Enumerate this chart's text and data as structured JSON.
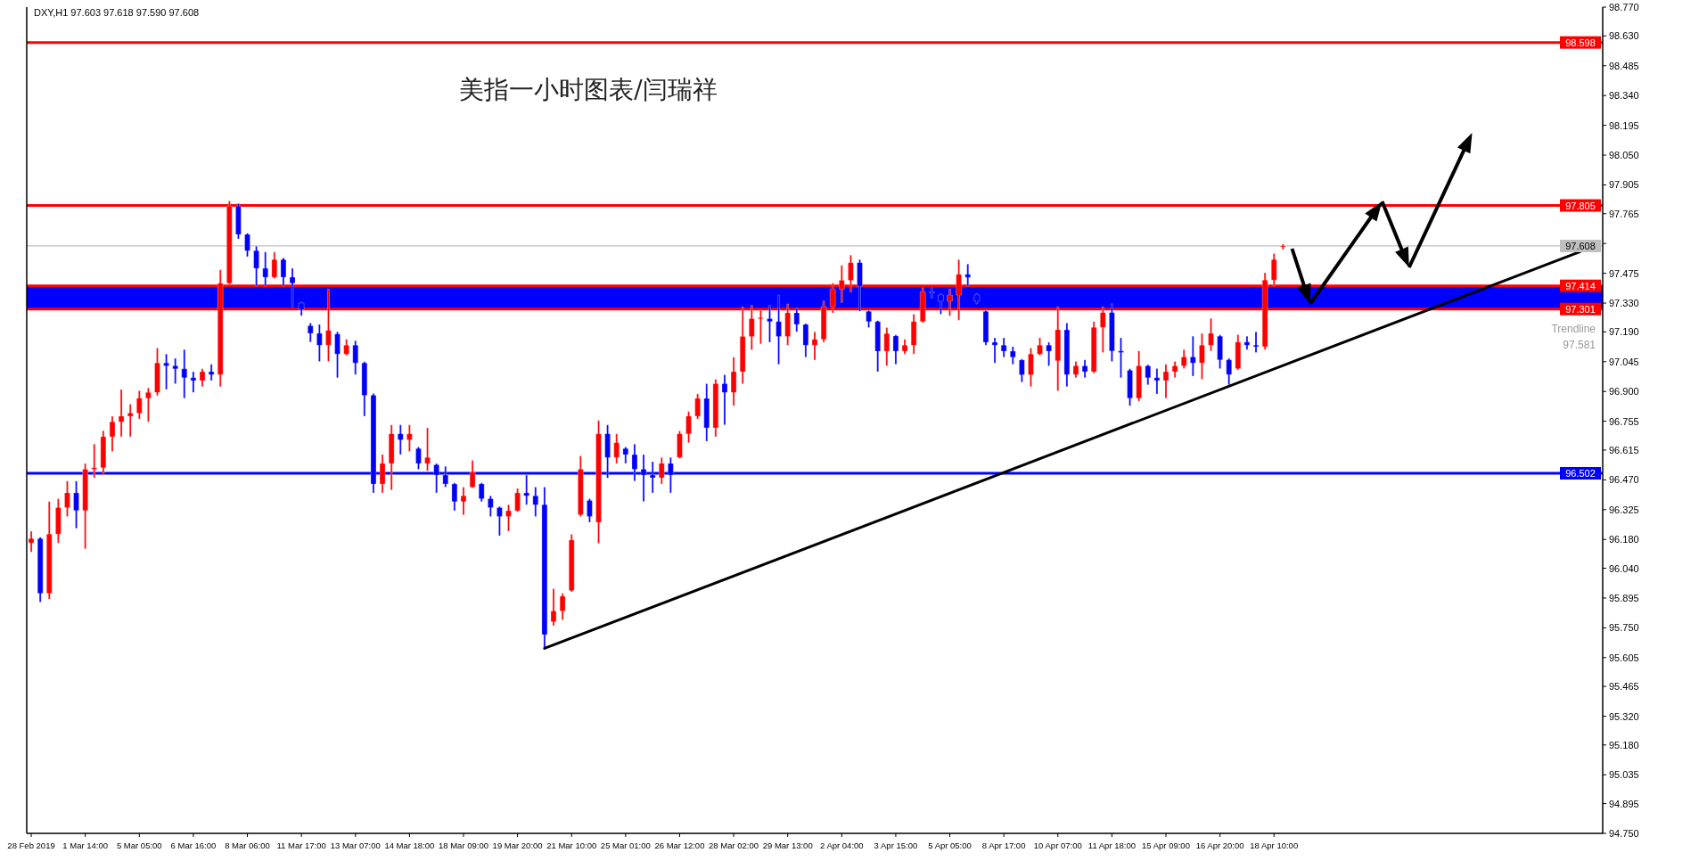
{
  "chart_data": {
    "type": "candlestick",
    "title": "美指一小时图表/闫瑞祥",
    "subtitle": "DXY,H1  97.603 97.618 97.590 97.608",
    "categories": [
      "28 Feb 2019",
      null,
      null,
      null,
      null,
      null,
      "1 Mar 14:00",
      null,
      null,
      null,
      null,
      null,
      "5 Mar 05:00",
      null,
      null,
      null,
      null,
      null,
      "6 Mar 16:00",
      null,
      null,
      null,
      null,
      null,
      "8 Mar 06:00",
      null,
      null,
      null,
      null,
      null,
      "11 Mar 17:00",
      null,
      null,
      null,
      null,
      null,
      "13 Mar 07:00",
      null,
      null,
      null,
      null,
      null,
      "14 Mar 18:00",
      null,
      null,
      null,
      null,
      null,
      "18 Mar 09:00",
      null,
      null,
      null,
      null,
      null,
      "19 Mar 20:00",
      null,
      null,
      null,
      null,
      null,
      "21 Mar 10:00",
      null,
      null,
      null,
      null,
      null,
      "25 Mar 01:00",
      null,
      null,
      null,
      null,
      null,
      "26 Mar 12:00",
      null,
      null,
      null,
      null,
      null,
      "28 Mar 02:00",
      null,
      null,
      null,
      null,
      null,
      "29 Mar 13:00",
      null,
      null,
      null,
      null,
      null,
      "2 Apr 04:00",
      null,
      null,
      null,
      null,
      null,
      "3 Apr 15:00",
      null,
      null,
      null,
      null,
      null,
      "5 Apr 05:00",
      null,
      null,
      null,
      null,
      null,
      "8 Apr 17:00",
      null,
      null,
      null,
      null,
      null,
      "10 Apr 07:00",
      null,
      null,
      null,
      null,
      null,
      "11 Apr 18:00",
      null,
      null,
      null,
      null,
      null,
      "15 Apr 09:00",
      null,
      null,
      null,
      null,
      null,
      "16 Apr 20:00",
      null,
      null,
      null,
      null,
      null,
      "18 Apr 10:00",
      null,
      null,
      null,
      null,
      null,
      null,
      null,
      null,
      null,
      null,
      null,
      null,
      null,
      null,
      null,
      null,
      null,
      null,
      null,
      null,
      null,
      null,
      null,
      null,
      null,
      null,
      null,
      null,
      null,
      null,
      null,
      null,
      null,
      null,
      null,
      null
    ],
    "ohlc": [
      [
        96.163,
        96.22,
        96.119,
        96.184
      ],
      [
        96.184,
        96.191,
        95.875,
        95.918
      ],
      [
        95.918,
        96.364,
        95.889,
        96.206
      ],
      [
        96.206,
        96.378,
        96.163,
        96.335
      ],
      [
        96.335,
        96.464,
        96.292,
        96.407
      ],
      [
        96.407,
        96.464,
        96.234,
        96.321
      ],
      [
        96.321,
        96.55,
        96.134,
        96.522
      ],
      [
        96.522,
        96.644,
        96.479,
        96.529
      ],
      [
        96.529,
        96.709,
        96.493,
        96.68
      ],
      [
        96.68,
        96.78,
        96.608,
        96.752
      ],
      [
        96.752,
        96.91,
        96.68,
        96.78
      ],
      [
        96.78,
        96.838,
        96.68,
        96.795
      ],
      [
        96.795,
        96.903,
        96.766,
        96.867
      ],
      [
        96.867,
        96.917,
        96.752,
        96.895
      ],
      [
        96.895,
        97.111,
        96.88,
        97.039
      ],
      [
        97.039,
        97.082,
        96.91,
        97.025
      ],
      [
        97.025,
        97.061,
        96.938,
        97.01
      ],
      [
        97.01,
        97.104,
        96.867,
        96.967
      ],
      [
        96.967,
        96.996,
        96.895,
        96.953
      ],
      [
        96.953,
        97.01,
        96.924,
        96.996
      ],
      [
        96.996,
        97.032,
        96.953,
        96.982
      ],
      [
        96.982,
        97.492,
        96.924,
        97.427
      ],
      [
        97.427,
        97.827,
        97.42,
        97.801
      ],
      [
        97.801,
        97.815,
        97.643,
        97.664
      ],
      [
        97.664,
        97.67,
        97.556,
        97.585
      ],
      [
        97.585,
        97.607,
        97.413,
        97.499
      ],
      [
        97.499,
        97.578,
        97.413,
        97.456
      ],
      [
        97.456,
        97.578,
        97.45,
        97.542
      ],
      [
        97.542,
        97.55,
        97.413,
        97.456
      ],
      [
        97.456,
        97.499,
        97.312,
        97.427
      ],
      [
        97.33,
        97.334,
        97.269,
        97.298
      ],
      [
        97.22,
        97.233,
        97.14,
        97.183
      ],
      [
        97.183,
        97.226,
        97.046,
        97.125
      ],
      [
        97.125,
        97.398,
        97.046,
        97.197
      ],
      [
        97.18,
        97.19,
        96.967,
        97.082
      ],
      [
        97.082,
        97.154,
        97.075,
        97.125
      ],
      [
        97.125,
        97.147,
        96.982,
        97.039
      ],
      [
        97.039,
        97.045,
        96.78,
        96.881
      ],
      [
        96.881,
        96.89,
        96.407,
        96.45
      ],
      [
        96.45,
        96.593,
        96.407,
        96.55
      ],
      [
        96.55,
        96.737,
        96.421,
        96.694
      ],
      [
        96.694,
        96.737,
        96.593,
        96.665
      ],
      [
        96.665,
        96.737,
        96.608,
        96.694
      ],
      [
        96.622,
        96.63,
        96.522,
        96.55
      ],
      [
        96.55,
        96.723,
        96.514,
        96.579
      ],
      [
        96.543,
        96.55,
        96.407,
        96.493
      ],
      [
        96.493,
        96.536,
        96.435,
        96.45
      ],
      [
        96.45,
        96.455,
        96.32,
        96.364
      ],
      [
        96.364,
        96.435,
        96.299,
        96.392
      ],
      [
        96.435,
        96.565,
        96.43,
        96.507
      ],
      [
        96.45,
        96.455,
        96.364,
        96.378
      ],
      [
        96.378,
        96.392,
        96.292,
        96.335
      ],
      [
        96.335,
        96.34,
        96.198,
        96.292
      ],
      [
        96.292,
        96.349,
        96.22,
        96.32
      ],
      [
        96.32,
        96.428,
        96.315,
        96.407
      ],
      [
        96.407,
        96.493,
        96.349,
        96.392
      ],
      [
        96.392,
        96.435,
        96.292,
        96.349
      ],
      [
        96.349,
        96.435,
        95.645,
        95.717
      ],
      [
        95.78,
        95.94,
        95.76,
        95.832
      ],
      [
        95.832,
        95.918,
        95.789,
        95.904
      ],
      [
        95.932,
        96.205,
        95.925,
        96.177
      ],
      [
        96.3,
        96.586,
        96.292,
        96.522
      ],
      [
        96.37,
        96.378,
        96.263,
        96.292
      ],
      [
        96.263,
        96.759,
        96.162,
        96.694
      ],
      [
        96.694,
        96.737,
        96.479,
        96.579
      ],
      [
        96.579,
        96.694,
        96.55,
        96.651
      ],
      [
        96.622,
        96.63,
        96.55,
        96.593
      ],
      [
        96.593,
        96.644,
        96.464,
        96.522
      ],
      [
        96.522,
        96.593,
        96.364,
        96.493
      ],
      [
        96.493,
        96.558,
        96.407,
        96.48
      ],
      [
        96.48,
        96.579,
        96.45,
        96.55
      ],
      [
        96.55,
        96.579,
        96.407,
        96.493
      ],
      [
        96.579,
        96.708,
        96.575,
        96.694
      ],
      [
        96.694,
        96.802,
        96.651,
        96.78
      ],
      [
        96.78,
        96.888,
        96.766,
        96.866
      ],
      [
        96.866,
        96.938,
        96.658,
        96.723
      ],
      [
        96.723,
        96.96,
        96.68,
        96.938
      ],
      [
        96.938,
        96.981,
        96.737,
        96.895
      ],
      [
        96.895,
        97.067,
        96.83,
        96.996
      ],
      [
        96.996,
        97.312,
        96.938,
        97.168
      ],
      [
        97.168,
        97.319,
        97.103,
        97.254
      ],
      [
        97.254,
        97.297,
        97.132,
        97.26
      ],
      [
        97.254,
        97.319,
        97.139,
        97.24
      ],
      [
        97.24,
        97.369,
        97.032,
        97.168
      ],
      [
        97.168,
        97.326,
        97.125,
        97.283
      ],
      [
        97.283,
        97.305,
        97.19,
        97.226
      ],
      [
        97.226,
        97.23,
        97.067,
        97.125
      ],
      [
        97.125,
        97.19,
        97.053,
        97.154
      ],
      [
        97.154,
        97.34,
        97.139,
        97.312
      ],
      [
        97.312,
        97.427,
        97.283,
        97.398
      ],
      [
        97.398,
        97.513,
        97.333,
        97.441
      ],
      [
        97.441,
        97.563,
        97.384,
        97.527
      ],
      [
        97.527,
        97.542,
        97.29,
        97.412
      ],
      [
        97.29,
        97.295,
        97.211,
        97.24
      ],
      [
        97.24,
        97.245,
        96.996,
        97.096
      ],
      [
        97.096,
        97.211,
        97.024,
        97.182
      ],
      [
        97.17,
        97.175,
        97.032,
        97.096
      ],
      [
        97.096,
        97.154,
        97.082,
        97.125
      ],
      [
        97.125,
        97.276,
        97.082,
        97.24
      ],
      [
        97.24,
        97.405,
        97.235,
        97.384
      ],
      [
        97.384,
        97.405,
        97.355,
        97.38
      ],
      [
        97.369,
        97.375,
        97.276,
        97.34
      ],
      [
        97.34,
        97.398,
        97.269,
        97.369
      ],
      [
        97.369,
        97.542,
        97.247,
        97.47
      ],
      [
        97.47,
        97.52,
        97.412,
        97.455
      ],
      [
        97.37,
        97.376,
        97.326,
        97.34
      ],
      [
        97.29,
        97.295,
        97.125,
        97.139
      ],
      [
        97.139,
        97.161,
        97.039,
        97.125
      ],
      [
        97.125,
        97.161,
        97.067,
        97.096
      ],
      [
        97.096,
        97.118,
        97.032,
        97.067
      ],
      [
        97.053,
        97.058,
        96.945,
        96.981
      ],
      [
        96.981,
        97.111,
        96.924,
        97.082
      ],
      [
        97.082,
        97.161,
        97.075,
        97.125
      ],
      [
        97.125,
        97.139,
        97.024,
        97.096
      ],
      [
        97.05,
        97.312,
        96.903,
        97.2
      ],
      [
        97.2,
        97.233,
        96.924,
        96.982
      ],
      [
        96.982,
        97.046,
        96.967,
        97.025
      ],
      [
        97.025,
        97.054,
        96.967,
        96.996
      ],
      [
        96.996,
        97.24,
        96.989,
        97.212
      ],
      [
        97.212,
        97.312,
        97.09,
        97.284
      ],
      [
        97.284,
        97.327,
        97.046,
        97.097
      ],
      [
        97.097,
        97.161,
        96.967,
        97.09
      ],
      [
        97.003,
        97.01,
        96.831,
        96.867
      ],
      [
        96.867,
        97.097,
        96.852,
        97.025
      ],
      [
        97.025,
        97.03,
        96.932,
        96.967
      ],
      [
        96.967,
        97.011,
        96.888,
        96.953
      ],
      [
        96.953,
        97.032,
        96.867,
        96.996
      ],
      [
        96.996,
        97.046,
        96.967,
        97.025
      ],
      [
        97.025,
        97.104,
        97.011,
        97.068
      ],
      [
        97.068,
        97.169,
        96.975,
        97.039
      ],
      [
        97.039,
        97.183,
        96.96,
        97.125
      ],
      [
        97.125,
        97.255,
        97.097,
        97.183
      ],
      [
        97.169,
        97.175,
        97.011,
        97.054
      ],
      [
        97.054,
        97.061,
        96.932,
        96.982
      ],
      [
        97.011,
        97.176,
        97.005,
        97.14
      ],
      [
        97.14,
        97.169,
        97.104,
        97.125
      ],
      [
        97.125,
        97.19,
        97.09,
        97.118
      ],
      [
        97.118,
        97.478,
        97.104,
        97.442
      ],
      [
        97.442,
        97.571,
        97.413,
        97.542
      ],
      [
        97.603,
        97.618,
        97.59,
        97.608
      ],
      null,
      null,
      null,
      null,
      null,
      null,
      null,
      null,
      null,
      null,
      null,
      null,
      null,
      null,
      null,
      null,
      null,
      null,
      null,
      null,
      null,
      null,
      null,
      null,
      null,
      null,
      null,
      null,
      null,
      null,
      null,
      null,
      null,
      null,
      null
    ],
    "colors": [
      "#ff0000",
      "#0000ff",
      "#ff0000",
      "#ff0000",
      "#ff0000",
      "#0000ff",
      "#ff0000",
      "#ff0000",
      "#ff0000",
      "#ff0000",
      "#ff0000",
      "#ff0000",
      "#ff0000",
      "#ff0000",
      "#ff0000",
      "#0000ff",
      "#0000ff",
      "#0000ff",
      "#0000ff",
      "#ff0000",
      "#0000ff",
      "#ff0000",
      "#ff0000",
      "#0000ff",
      "#0000ff",
      "#0000ff",
      "#0000ff",
      "#ff0000",
      "#0000ff",
      "#0000ff",
      "#0000ff",
      "#0000ff",
      "#0000ff",
      "#ff0000",
      "#0000ff",
      "#ff0000",
      "#0000ff",
      "#0000ff",
      "#0000ff",
      "#ff0000",
      "#ff0000",
      "#0000ff",
      "#ff0000",
      "#0000ff",
      "#ff0000",
      "#0000ff",
      "#0000ff",
      "#0000ff",
      "#ff0000",
      "#ff0000",
      "#0000ff",
      "#0000ff",
      "#0000ff",
      "#ff0000",
      "#ff0000",
      "#0000ff",
      "#0000ff",
      "#0000ff",
      "#ff0000",
      "#ff0000",
      "#ff0000",
      "#ff0000",
      "#0000ff",
      "#ff0000",
      "#0000ff",
      "#ff0000",
      "#0000ff",
      "#0000ff",
      "#0000ff",
      "#0000ff",
      "#ff0000",
      "#0000ff",
      "#ff0000",
      "#ff0000",
      "#ff0000",
      "#0000ff",
      "#ff0000",
      "#0000ff",
      "#ff0000",
      "#ff0000",
      "#ff0000",
      "#ff0000",
      "#0000ff",
      "#0000ff",
      "#ff0000",
      "#0000ff",
      "#0000ff",
      "#ff0000",
      "#ff0000",
      "#ff0000",
      "#ff0000",
      "#ff0000",
      "#0000ff",
      "#0000ff",
      "#0000ff",
      "#ff0000",
      "#0000ff",
      "#ff0000",
      "#ff0000",
      "#ff0000",
      "#0000ff",
      "#0000ff",
      "#ff0000",
      "#ff0000",
      "#0000ff",
      "#0000ff",
      "#0000ff",
      "#0000ff",
      "#0000ff",
      "#0000ff",
      "#0000ff",
      "#ff0000",
      "#ff0000",
      "#0000ff",
      "#ff0000",
      "#0000ff",
      "#ff0000",
      "#0000ff",
      "#ff0000",
      "#ff0000",
      "#0000ff",
      "#0000ff",
      "#0000ff",
      "#ff0000",
      "#0000ff",
      "#0000ff",
      "#ff0000",
      "#ff0000",
      "#ff0000",
      "#0000ff",
      "#ff0000",
      "#ff0000",
      "#0000ff",
      "#0000ff",
      "#ff0000",
      "#0000ff",
      "#0000ff",
      "#ff0000",
      "#ff0000",
      "#ff0000",
      null,
      null,
      null,
      null,
      null,
      null,
      null,
      null,
      null,
      null,
      null,
      null,
      null,
      null,
      null,
      null,
      null,
      null,
      null,
      null,
      null,
      null,
      null,
      null,
      null,
      null,
      null,
      null,
      null,
      null,
      null,
      null,
      null,
      null,
      null
    ],
    "series": [
      {
        "type": "line",
        "color": "#000000",
        "values": [
          null,
          null,
          null,
          null,
          null,
          null,
          null,
          null,
          null,
          null,
          null,
          null,
          null,
          null,
          null,
          null,
          null,
          null,
          null,
          null,
          null,
          null,
          null,
          null,
          null,
          null,
          null,
          null,
          null,
          null,
          null,
          null,
          null,
          null,
          null,
          null,
          null,
          null,
          null,
          null,
          null,
          null,
          null,
          null,
          null,
          null,
          null,
          null,
          null,
          null,
          null,
          null,
          null,
          null,
          null,
          null,
          null,
          95.65,
          null,
          null,
          null,
          null,
          null,
          null,
          null,
          null,
          null,
          null,
          null,
          null,
          null,
          null,
          null,
          null,
          null,
          null,
          null,
          null,
          null,
          null,
          null,
          null,
          null,
          null,
          null,
          null,
          null,
          null,
          null,
          null,
          null,
          null,
          null,
          null,
          null,
          null,
          null,
          null,
          null,
          null,
          null,
          null,
          null,
          null,
          null,
          null,
          null,
          null,
          null,
          null,
          null,
          null,
          null,
          null,
          null,
          null,
          null,
          null,
          null,
          null,
          null,
          null,
          null,
          null,
          null,
          null,
          null,
          null,
          null,
          null,
          null,
          null,
          null,
          null,
          null,
          null,
          null,
          null,
          null,
          null,
          null,
          null,
          null,
          null,
          null,
          null,
          null,
          null,
          null,
          null,
          null,
          null,
          null,
          null,
          null,
          null,
          null,
          null,
          null,
          null,
          null,
          null,
          null,
          null,
          null,
          null,
          null,
          null,
          null,
          null,
          null,
          null,
          97.58,
          null,
          null
        ]
      }
    ],
    "ref_lines": [
      {
        "axis": "y",
        "value": 98.598,
        "label": "98.598",
        "color": "#ff0000"
      },
      {
        "axis": "y",
        "value": 97.805,
        "label": "97.805",
        "color": "#ff0000"
      },
      {
        "axis": "y",
        "value": 97.608,
        "label": "97.608",
        "color": "#c0c0c0"
      },
      {
        "axis": "y",
        "value": 97.414,
        "label": "97.414",
        "color": "#ff0000"
      },
      {
        "axis": "y",
        "value": 97.301,
        "label": "97.301",
        "color": "#ff0000"
      },
      {
        "axis": "y",
        "value": 96.502,
        "label": "96.502",
        "color": "#0000ff"
      }
    ],
    "bands": [
      {
        "axis": "y",
        "from": 97.301,
        "to": 97.414,
        "color": "#0000ff"
      }
    ],
    "annotations": [
      "Trendline",
      "97.581"
    ],
    "ylim": [
      94.75,
      98.77
    ],
    "yticks": [
      {
        "value": 94.75,
        "label": "94.750"
      },
      {
        "value": 94.895,
        "label": "94.895"
      },
      {
        "value": 95.035,
        "label": "95.035"
      },
      {
        "value": 95.18,
        "label": "95.180"
      },
      {
        "value": 95.32,
        "label": "95.320"
      },
      {
        "value": 95.465,
        "label": "95.465"
      },
      {
        "value": 95.605,
        "label": "95.605"
      },
      {
        "value": 95.75,
        "label": "95.750"
      },
      {
        "value": 95.895,
        "label": "95.895"
      },
      {
        "value": 96.04,
        "label": "96.040"
      },
      {
        "value": 96.18,
        "label": "96.180"
      },
      {
        "value": 96.325,
        "label": "96.325"
      },
      {
        "value": 96.47,
        "label": "96.470"
      },
      {
        "value": 96.615,
        "label": "96.615"
      },
      {
        "value": 96.755,
        "label": "96.755"
      },
      {
        "value": 96.9,
        "label": "96.900"
      },
      {
        "value": 97.045,
        "label": "97.045"
      },
      {
        "value": 97.19,
        "label": "97.190"
      },
      {
        "value": 97.33,
        "label": "97.330"
      },
      {
        "value": 97.475,
        "label": "97.475"
      },
      {
        "value": 97.62,
        "label": null
      },
      {
        "value": 97.765,
        "label": "97.765"
      },
      {
        "value": 97.905,
        "label": "97.905"
      },
      {
        "value": 98.05,
        "label": "98.050"
      },
      {
        "value": 98.195,
        "label": "98.195"
      },
      {
        "value": 98.34,
        "label": "98.340"
      },
      {
        "value": 98.485,
        "label": "98.485"
      },
      {
        "value": 98.63,
        "label": "98.630"
      },
      {
        "value": 98.77,
        "label": "98.770"
      }
    ]
  }
}
